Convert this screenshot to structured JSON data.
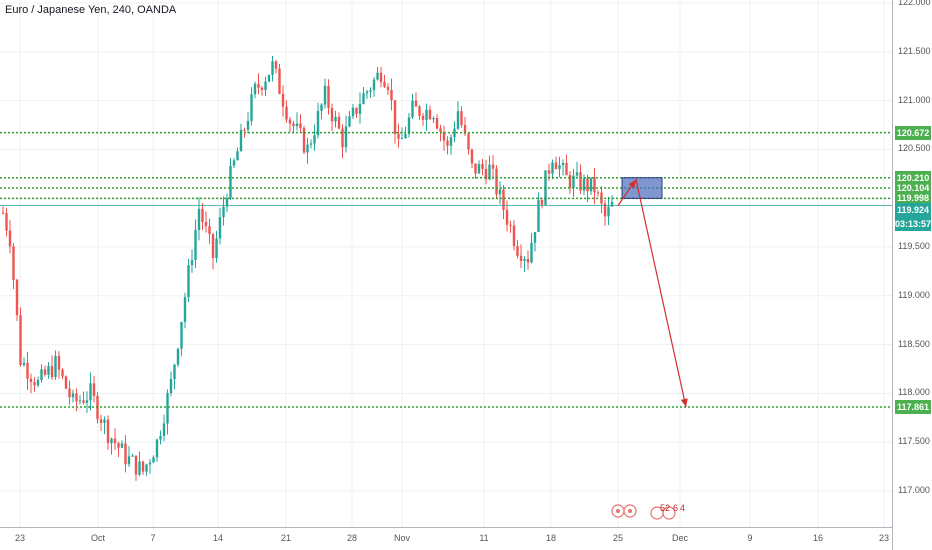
{
  "title": "Euro / Japanese Yen, 240, OANDA",
  "colors": {
    "up": "#26a69a",
    "down": "#ef5350",
    "level_line": "#2e9f2e",
    "level_label_bg": "#4caf50",
    "current_label_bg": "#26a69a",
    "zone_fill": "#4a69bd",
    "arrow": "#d32f2f",
    "grid": "#eef0f3"
  },
  "chart_data": {
    "type": "candlestick",
    "symbol": "Euro / Japanese Yen",
    "interval": "240",
    "source": "OANDA",
    "ylim": [
      116.8,
      122.0
    ],
    "y_ticks": [
      "122.000",
      "121.500",
      "121.000",
      "120.500",
      "120.000",
      "119.500",
      "119.000",
      "118.500",
      "118.000",
      "117.500",
      "117.000"
    ],
    "x_ticks": [
      "23",
      "Oct",
      "7",
      "14",
      "21",
      "28",
      "Nov",
      "11",
      "18",
      "25",
      "Dec",
      "9",
      "16",
      "23"
    ],
    "anchors": [
      {
        "t": 0,
        "p": 119.85
      },
      {
        "t": 2,
        "p": 119.6
      },
      {
        "t": 5,
        "p": 118.35
      },
      {
        "t": 10,
        "p": 118.1
      },
      {
        "t": 15,
        "p": 118.3
      },
      {
        "t": 20,
        "p": 117.9
      },
      {
        "t": 25,
        "p": 118.0
      },
      {
        "t": 30,
        "p": 117.6
      },
      {
        "t": 35,
        "p": 117.35
      },
      {
        "t": 40,
        "p": 117.2
      },
      {
        "t": 44,
        "p": 117.5
      },
      {
        "t": 48,
        "p": 118.1
      },
      {
        "t": 52,
        "p": 119.0
      },
      {
        "t": 56,
        "p": 119.9
      },
      {
        "t": 60,
        "p": 119.4
      },
      {
        "t": 64,
        "p": 120.1
      },
      {
        "t": 68,
        "p": 120.6
      },
      {
        "t": 72,
        "p": 121.1
      },
      {
        "t": 77,
        "p": 121.35
      },
      {
        "t": 82,
        "p": 120.8
      },
      {
        "t": 87,
        "p": 120.5
      },
      {
        "t": 92,
        "p": 121.05
      },
      {
        "t": 97,
        "p": 120.6
      },
      {
        "t": 102,
        "p": 121.0
      },
      {
        "t": 108,
        "p": 121.3
      },
      {
        "t": 110,
        "p": 121.2
      },
      {
        "t": 113,
        "p": 120.5
      },
      {
        "t": 117,
        "p": 120.9
      },
      {
        "t": 123,
        "p": 120.9
      },
      {
        "t": 127,
        "p": 120.5
      },
      {
        "t": 130,
        "p": 120.9
      },
      {
        "t": 134,
        "p": 120.3
      },
      {
        "t": 139,
        "p": 120.3
      },
      {
        "t": 143,
        "p": 119.9
      },
      {
        "t": 147,
        "p": 119.5
      },
      {
        "t": 150,
        "p": 119.4
      },
      {
        "t": 153,
        "p": 119.9
      },
      {
        "t": 157,
        "p": 120.45
      },
      {
        "t": 161,
        "p": 120.2
      },
      {
        "t": 165,
        "p": 120.15
      },
      {
        "t": 169,
        "p": 120.1
      },
      {
        "t": 172,
        "p": 119.8
      },
      {
        "t": 174,
        "p": 119.92
      }
    ],
    "levels": [
      {
        "price": 120.672,
        "label": "120.672",
        "style": "dotted"
      },
      {
        "price": 120.21,
        "label": "120.210",
        "style": "dotted"
      },
      {
        "price": 120.104,
        "label": "120.104",
        "style": "dotted"
      },
      {
        "price": 119.998,
        "label": "119.998",
        "style": "dotted"
      },
      {
        "price": 119.924,
        "label": "119.924",
        "style": "solid-thin"
      },
      {
        "price": 117.861,
        "label": "117.861",
        "style": "dotted"
      }
    ],
    "current": {
      "price": 119.924,
      "label": "119.924",
      "countdown": "03:13:57"
    },
    "zone": {
      "from_price": 119.998,
      "to_price": 120.21,
      "from_label": "25",
      "to_label": "Dec"
    },
    "projection": [
      {
        "at": "25",
        "price": 119.924
      },
      {
        "at": "between 25 and Dec",
        "price": 120.19
      },
      {
        "at": "Dec",
        "price": 117.861
      }
    ],
    "events": [
      "5",
      "2",
      "6",
      "4"
    ]
  }
}
